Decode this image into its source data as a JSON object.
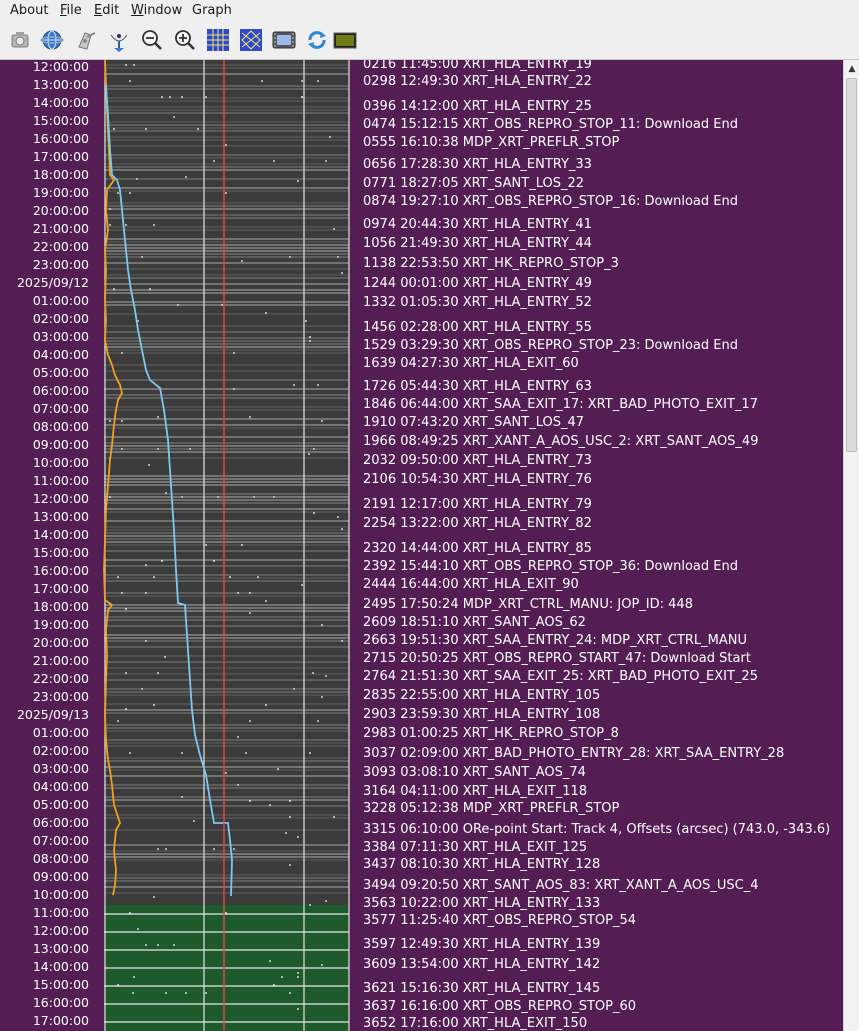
{
  "menubar": {
    "items": [
      {
        "label": "About",
        "mnemonic": ""
      },
      {
        "label": "File",
        "mnemonic": "F"
      },
      {
        "label": "Edit",
        "mnemonic": "E"
      },
      {
        "label": "Window",
        "mnemonic": "W"
      },
      {
        "label": "Graph",
        "mnemonic": ""
      }
    ]
  },
  "toolbar": {
    "buttons": [
      {
        "icon": "camera-icon"
      },
      {
        "icon": "globe-icon"
      },
      {
        "icon": "spacecraft-icon"
      },
      {
        "icon": "satellite-dish-icon"
      },
      {
        "icon": "zoom-out-icon"
      },
      {
        "icon": "zoom-in-icon"
      },
      {
        "icon": "grid-icon"
      },
      {
        "icon": "star-pattern-icon"
      },
      {
        "icon": "film-icon"
      },
      {
        "icon": "refresh-icon"
      },
      {
        "icon": "monitor-icon"
      }
    ]
  },
  "time_axis": {
    "labels": [
      "12:00:00",
      "13:00:00",
      "14:00:00",
      "15:00:00",
      "16:00:00",
      "17:00:00",
      "18:00:00",
      "19:00:00",
      "20:00:00",
      "21:00:00",
      "22:00:00",
      "23:00:00",
      "2025/09/12",
      "01:00:00",
      "02:00:00",
      "03:00:00",
      "04:00:00",
      "05:00:00",
      "06:00:00",
      "07:00:00",
      "08:00:00",
      "09:00:00",
      "10:00:00",
      "11:00:00",
      "12:00:00",
      "13:00:00",
      "14:00:00",
      "15:00:00",
      "16:00:00",
      "17:00:00",
      "18:00:00",
      "19:00:00",
      "20:00:00",
      "21:00:00",
      "22:00:00",
      "23:00:00",
      "2025/09/13",
      "01:00:00",
      "02:00:00",
      "03:00:00",
      "04:00:00",
      "05:00:00",
      "06:00:00",
      "07:00:00",
      "08:00:00",
      "09:00:00",
      "10:00:00",
      "11:00:00",
      "12:00:00",
      "13:00:00",
      "14:00:00",
      "15:00:00",
      "16:00:00",
      "17:00:00"
    ]
  },
  "events": [
    {
      "text": "0216 11:45:00 XRT_HLA_ENTRY_19"
    },
    {
      "text": "0298 12:49:30 XRT_HLA_ENTRY_22"
    },
    {
      "text": "0396 14:12:00 XRT_HLA_ENTRY_25"
    },
    {
      "text": "0474 15:12:15 XRT_OBS_REPRO_STOP_11: Download End"
    },
    {
      "text": "0555 16:10:38 MDP_XRT_PREFLR_STOP"
    },
    {
      "text": "0656 17:28:30 XRT_HLA_ENTRY_33"
    },
    {
      "text": "0771 18:27:05 XRT_SANT_LOS_22"
    },
    {
      "text": "0874 19:27:10 XRT_OBS_REPRO_STOP_16: Download End"
    },
    {
      "text": "0974 20:44:30 XRT_HLA_ENTRY_41"
    },
    {
      "text": "1056 21:49:30 XRT_HLA_ENTRY_44"
    },
    {
      "text": "1138 22:53:50 XRT_HK_REPRO_STOP_3"
    },
    {
      "text": "1244 00:01:00 XRT_HLA_ENTRY_49"
    },
    {
      "text": "1332 01:05:30 XRT_HLA_ENTRY_52"
    },
    {
      "text": "1456 02:28:00 XRT_HLA_ENTRY_55"
    },
    {
      "text": "1529 03:29:30 XRT_OBS_REPRO_STOP_23: Download End"
    },
    {
      "text": "1639 04:27:30 XRT_HLA_EXIT_60"
    },
    {
      "text": "1726 05:44:30 XRT_HLA_ENTRY_63"
    },
    {
      "text": "1846 06:44:00 XRT_SAA_EXIT_17: XRT_BAD_PHOTO_EXIT_17"
    },
    {
      "text": "1910 07:43:20 XRT_SANT_LOS_47"
    },
    {
      "text": "1966 08:49:25 XRT_XANT_A_AOS_USC_2: XRT_SANT_AOS_49"
    },
    {
      "text": "2032 09:50:00 XRT_HLA_ENTRY_73"
    },
    {
      "text": "2106 10:54:30 XRT_HLA_ENTRY_76"
    },
    {
      "text": "2191 12:17:00 XRT_HLA_ENTRY_79"
    },
    {
      "text": "2254 13:22:00 XRT_HLA_ENTRY_82"
    },
    {
      "text": "2320 14:44:00 XRT_HLA_ENTRY_85"
    },
    {
      "text": "2392 15:44:10 XRT_OBS_REPRO_STOP_36: Download End"
    },
    {
      "text": "2444 16:44:00 XRT_HLA_EXIT_90"
    },
    {
      "text": "2495 17:50:24 MDP_XRT_CTRL_MANU: JOP_ID: 448"
    },
    {
      "text": "2609 18:51:10 XRT_SANT_AOS_62"
    },
    {
      "text": "2663 19:51:30 XRT_SAA_ENTRY_24: MDP_XRT_CTRL_MANU"
    },
    {
      "text": "2715 20:50:25 XRT_OBS_REPRO_START_47: Download Start"
    },
    {
      "text": "2764 21:51:30 XRT_SAA_EXIT_25: XRT_BAD_PHOTO_EXIT_25"
    },
    {
      "text": "2835 22:55:00 XRT_HLA_ENTRY_105"
    },
    {
      "text": "2903 23:59:30 XRT_HLA_ENTRY_108"
    },
    {
      "text": "2983 01:00:25 XRT_HK_REPRO_STOP_8"
    },
    {
      "text": "3037 02:09:00 XRT_BAD_PHOTO_ENTRY_28: XRT_SAA_ENTRY_28"
    },
    {
      "text": "3093 03:08:10 XRT_SANT_AOS_74"
    },
    {
      "text": "3164 04:11:00 XRT_HLA_EXIT_118"
    },
    {
      "text": "3228 05:12:38 MDP_XRT_PREFLR_STOP"
    },
    {
      "text": "3315 06:10:00 ORe-point Start: Track 4, Offsets (arcsec) (743.0, -343.6)"
    },
    {
      "text": "3384 07:11:30 XRT_HLA_EXIT_125"
    },
    {
      "text": "3437 08:10:30 XRT_HLA_ENTRY_128"
    },
    {
      "text": "3494 09:20:50 XRT_SANT_AOS_83: XRT_XANT_A_AOS_USC_4"
    },
    {
      "text": "3563 10:22:00 XRT_HLA_ENTRY_133"
    },
    {
      "text": "3577 11:25:40 XRT_OBS_REPRO_STOP_54"
    },
    {
      "text": "3597 12:49:30 XRT_HLA_ENTRY_139"
    },
    {
      "text": "3609 13:54:00 XRT_HLA_ENTRY_142"
    },
    {
      "text": "3621 15:16:30 XRT_HLA_ENTRY_145"
    },
    {
      "text": "3637 16:16:00 XRT_OBS_REPRO_STOP_60"
    },
    {
      "text": "3652 17:16:00 XRT_HLA_EXIT_150"
    }
  ],
  "colors": {
    "panel_bg": "#541e54",
    "strip_bg": "#3c3c3c",
    "future_bg": "#1f5a2c",
    "orbit_line": "#f0a020",
    "data_line": "#7ec8f0",
    "current_marker": "#e04848"
  }
}
